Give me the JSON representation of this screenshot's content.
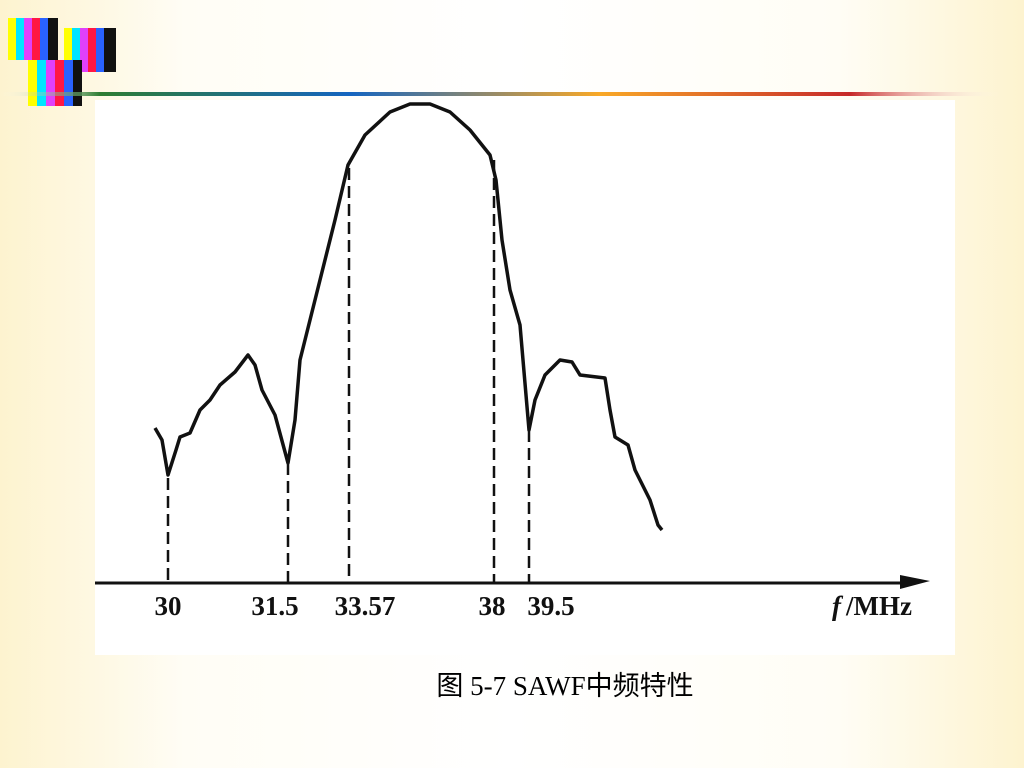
{
  "figure": {
    "ticks": [
      "30",
      "31.5",
      "33.57",
      "38",
      "39.5"
    ],
    "axis_label": {
      "symbol": "f",
      "unit": "/MHz"
    }
  },
  "caption": "图 5-7 SAWF中频特性"
}
